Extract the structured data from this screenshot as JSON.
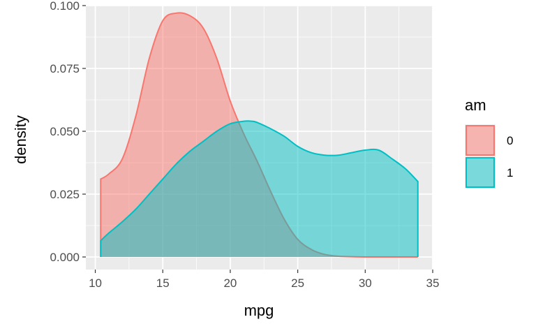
{
  "chart_data": {
    "type": "area",
    "subtype": "density",
    "title": "",
    "xlabel": "mpg",
    "ylabel": "density",
    "xlim": [
      9.3,
      35.0
    ],
    "ylim": [
      -0.005,
      0.1
    ],
    "x_ticks": [
      10,
      15,
      20,
      25,
      30,
      35
    ],
    "x_tick_labels": [
      "10",
      "15",
      "20",
      "25",
      "30",
      "35"
    ],
    "y_ticks": [
      0.0,
      0.025,
      0.05,
      0.075,
      0.1
    ],
    "y_tick_labels": [
      "0.000",
      "0.025",
      "0.050",
      "0.075",
      "0.100"
    ],
    "grid": true,
    "legend_position": "right",
    "legend_title": "am",
    "series": [
      {
        "name": "0",
        "color": "#F8766D",
        "fill": "#F8766D",
        "opacity": 0.5,
        "x": [
          10.4,
          11.0,
          12.0,
          13.0,
          14.0,
          15.0,
          16.0,
          17.0,
          18.0,
          19.0,
          20.0,
          21.0,
          22.0,
          23.0,
          24.0,
          25.0,
          26.0,
          27.0,
          28.0,
          29.0,
          30.0,
          31.0,
          32.0,
          33.0,
          33.9
        ],
        "y": [
          0.031,
          0.033,
          0.039,
          0.056,
          0.079,
          0.094,
          0.097,
          0.096,
          0.091,
          0.079,
          0.062,
          0.049,
          0.038,
          0.026,
          0.015,
          0.007,
          0.003,
          0.001,
          0.0003,
          0.0001,
          0.0,
          0.0,
          0.0,
          0.0,
          0.0
        ]
      },
      {
        "name": "1",
        "color": "#00BFC4",
        "fill": "#00BFC4",
        "opacity": 0.5,
        "x": [
          10.4,
          11.0,
          12.0,
          13.0,
          14.0,
          15.0,
          16.0,
          17.0,
          18.0,
          19.0,
          20.0,
          21.0,
          21.6,
          22.0,
          23.0,
          24.0,
          25.0,
          26.0,
          27.0,
          28.0,
          29.0,
          30.0,
          31.0,
          32.0,
          33.0,
          33.9
        ],
        "y": [
          0.0065,
          0.0095,
          0.014,
          0.019,
          0.025,
          0.031,
          0.037,
          0.042,
          0.046,
          0.05,
          0.053,
          0.054,
          0.054,
          0.0535,
          0.051,
          0.048,
          0.044,
          0.0415,
          0.0405,
          0.0405,
          0.0415,
          0.0425,
          0.0425,
          0.039,
          0.035,
          0.03
        ]
      }
    ]
  }
}
